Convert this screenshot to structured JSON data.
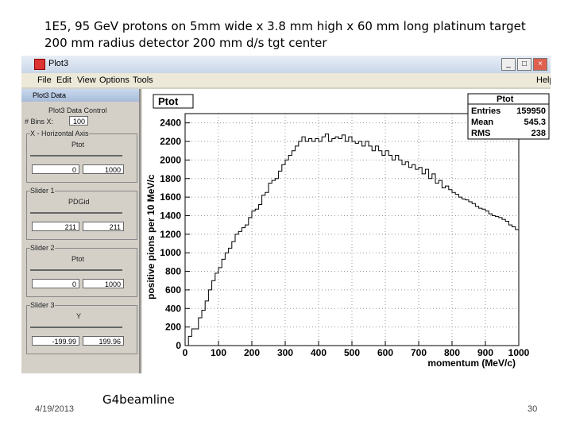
{
  "slide": {
    "title_line1": "1E5, 95 GeV protons on 5mm wide x 3.8 mm high x 60 mm long platinum target",
    "title_line2": "200 mm radius detector 200 mm d/s tgt center",
    "footer_date": "4/19/2013",
    "footer_name": "G4beamline",
    "page_number": "30"
  },
  "window": {
    "title": "Plot3",
    "menu": [
      "File",
      "Edit",
      "View",
      "Options",
      "Tools"
    ],
    "menu_right": "Help"
  },
  "side_panel": {
    "title": "Plot3 Data",
    "header": "Plot3 Data Control",
    "bins_label": "# Bins X:",
    "bins_value": "100",
    "x_axis_label": "X - Horizontal Axis",
    "x_axis_var": "Ptot",
    "x_min": "0",
    "x_max": "1000",
    "slider1_label": "Slider 1",
    "slider1_var": "PDGid",
    "slider1_min": "211",
    "slider1_max": "211",
    "slider2_label": "Slider 2",
    "slider2_var": "Ptot",
    "slider2_min": "0",
    "slider2_max": "1000",
    "slider3_label": "Slider 3",
    "slider3_var": "Y",
    "slider3_min": "-199.99",
    "slider3_max": "199.96"
  },
  "plot": {
    "hist_name": "Ptot",
    "stats_title": "Ptot",
    "stats": [
      {
        "label": "Entries",
        "value": "159950"
      },
      {
        "label": "Mean",
        "value": "545.3"
      },
      {
        "label": "RMS",
        "value": "238"
      }
    ]
  },
  "chart_data": {
    "type": "bar",
    "title": "Ptot",
    "xlabel": "momentum (MeV/c)",
    "ylabel": "positive pions per 10 MeV/c",
    "xlim": [
      0,
      1000
    ],
    "ylim": [
      0,
      2500
    ],
    "xticks": [
      0,
      100,
      200,
      300,
      400,
      500,
      600,
      700,
      800,
      900,
      1000
    ],
    "yticks": [
      0,
      200,
      400,
      600,
      800,
      1000,
      1200,
      1400,
      1600,
      1800,
      2000,
      2200,
      2400
    ],
    "bin_width": 10,
    "x_start": 0,
    "values": [
      0,
      100,
      180,
      180,
      300,
      380,
      480,
      600,
      700,
      780,
      840,
      930,
      1000,
      1050,
      1120,
      1200,
      1230,
      1270,
      1300,
      1380,
      1450,
      1470,
      1520,
      1620,
      1650,
      1750,
      1780,
      1800,
      1880,
      1950,
      2000,
      2050,
      2100,
      2150,
      2200,
      2250,
      2200,
      2230,
      2200,
      2230,
      2200,
      2250,
      2280,
      2200,
      2230,
      2250,
      2230,
      2270,
      2200,
      2250,
      2200,
      2180,
      2200,
      2150,
      2200,
      2150,
      2100,
      2150,
      2100,
      2050,
      2100,
      2050,
      2000,
      2050,
      2000,
      1950,
      1980,
      1920,
      1950,
      1900,
      1920,
      1850,
      1900,
      1800,
      1850,
      1750,
      1780,
      1700,
      1720,
      1680,
      1650,
      1630,
      1600,
      1580,
      1570,
      1550,
      1530,
      1500,
      1480,
      1470,
      1450,
      1420,
      1400,
      1390,
      1380,
      1360,
      1340,
      1300,
      1280,
      1250
    ]
  }
}
